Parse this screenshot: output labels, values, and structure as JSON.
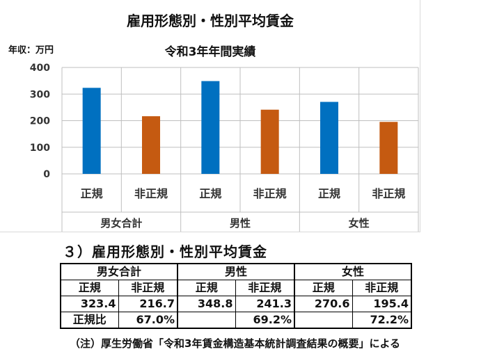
{
  "chart_data": {
    "type": "bar",
    "title": "雇用形態別・性別平均賃金",
    "subtitle": "令和3年年間実績",
    "unit_label": "年収：万円",
    "ylim": [
      0,
      400
    ],
    "yticks": [
      0,
      100,
      200,
      300,
      400
    ],
    "grid": true,
    "categories": [
      "正規",
      "非正規",
      "正規",
      "非正規",
      "正規",
      "非正規"
    ],
    "groups": [
      "男女合計",
      "男性",
      "女性"
    ],
    "values": [
      323.4,
      216.7,
      348.8,
      241.3,
      270.6,
      195.4
    ],
    "bar_colors": [
      "#0070c0",
      "#c55a11",
      "#0070c0",
      "#c55a11",
      "#0070c0",
      "#c55a11"
    ]
  },
  "table": {
    "heading": "３）雇用形態別・性別平均賃金",
    "groups": [
      "男女合計",
      "男性",
      "女性"
    ],
    "subheaders": [
      "正規",
      "非正規",
      "正規",
      "非正規",
      "正規",
      "非正規"
    ],
    "values": [
      "323.4",
      "216.7",
      "348.8",
      "241.3",
      "270.6",
      "195.4"
    ],
    "ratio_label": "正規比",
    "ratios": [
      "67.0%",
      "69.2%",
      "72.2%"
    ]
  },
  "footnote": "（注）厚生労働省「令和3年賃金構造基本統計調査結果の概要」による"
}
